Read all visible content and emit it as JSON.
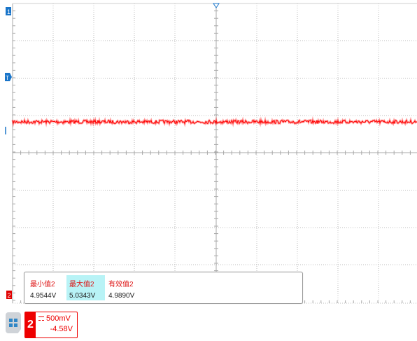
{
  "colors": {
    "trace": "#ff0000",
    "grid": "#bdbdbd",
    "marker_blue": "#1a75c9",
    "highlight": "#b8f3f6"
  },
  "markers": {
    "ch1_ground": "1",
    "trigger_level": "T",
    "bottom_channel_label": "2"
  },
  "measurements": {
    "headers": [
      "最小值2",
      "最大值2",
      "有效值2"
    ],
    "values": [
      "4.9544V",
      "5.0343V",
      "4.9890V"
    ]
  },
  "channel": {
    "number": "2",
    "scale": "500mV",
    "offset": "-4.58V"
  },
  "icons": {
    "menu": "grid-menu-icon",
    "coupling": "dc-coupling-icon"
  }
}
